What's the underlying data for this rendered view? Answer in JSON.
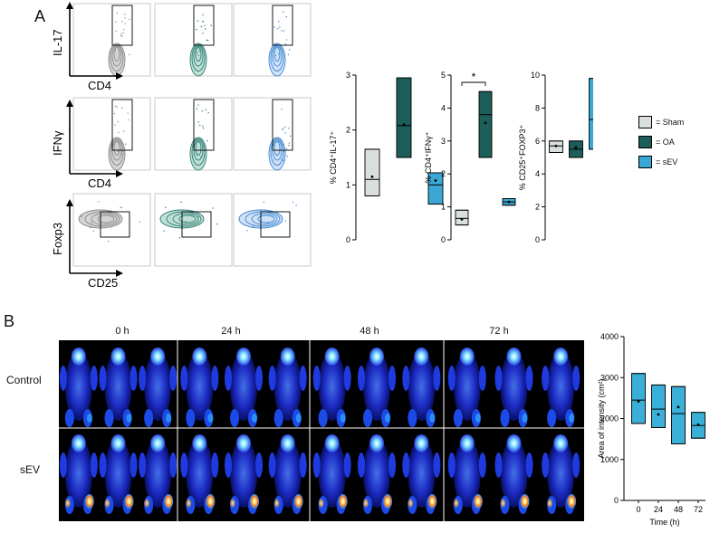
{
  "panel_labels": {
    "a": "A",
    "b": "B"
  },
  "flow": {
    "rows": [
      {
        "y_label": "IL-17",
        "x_label": "CD4"
      },
      {
        "y_label": "IFNγ",
        "x_label": "CD4"
      },
      {
        "y_label": "Foxp3",
        "x_label": "CD25"
      }
    ],
    "groups": [
      "Sham",
      "OA",
      "sEV"
    ]
  },
  "legend": {
    "items": [
      {
        "name": "= Sham",
        "color": "#d9dedf"
      },
      {
        "name": "= OA",
        "color": "#1c5e5a"
      },
      {
        "name": "= sEV",
        "color": "#3aa7d4"
      }
    ]
  },
  "imaging": {
    "timepoints": [
      "0 h",
      "24 h",
      "48 h",
      "72 h"
    ],
    "rows": [
      "Control",
      "sEV"
    ]
  },
  "chart_data": [
    {
      "type": "box",
      "ylabel": "% CD4⁺IL-17⁺",
      "ylim": [
        0,
        3
      ],
      "yticks": [
        "0",
        "1",
        "2",
        "3"
      ],
      "series": [
        {
          "name": "Sham",
          "min": 0.8,
          "q1": 0.8,
          "median": 1.1,
          "q3": 1.65,
          "max": 1.65,
          "mean": 1.15
        },
        {
          "name": "OA",
          "min": 1.5,
          "q1": 1.5,
          "median": 2.08,
          "q3": 2.95,
          "max": 2.95,
          "mean": 2.1
        },
        {
          "name": "sEV",
          "min": 0.65,
          "q1": 0.65,
          "median": 1.0,
          "q3": 1.22,
          "max": 1.22,
          "mean": 1.08
        }
      ]
    },
    {
      "type": "box",
      "ylabel": "% CD4⁺IFNγ⁺",
      "ylim": [
        0,
        5
      ],
      "yticks": [
        "0",
        "1",
        "2",
        "3",
        "4",
        "5"
      ],
      "annotation": "*",
      "series": [
        {
          "name": "Sham",
          "min": 0.45,
          "q1": 0.45,
          "median": 0.65,
          "q3": 0.9,
          "max": 0.9,
          "mean": 0.62
        },
        {
          "name": "OA",
          "min": 2.5,
          "q1": 2.5,
          "median": 3.8,
          "q3": 4.5,
          "max": 4.5,
          "mean": 3.55
        },
        {
          "name": "sEV",
          "min": 1.05,
          "q1": 1.05,
          "median": 1.15,
          "q3": 1.25,
          "max": 1.25,
          "mean": 1.15
        }
      ]
    },
    {
      "type": "box",
      "ylabel": "% CD25⁺FOXP3⁺",
      "ylim": [
        0,
        10
      ],
      "yticks": [
        "0",
        "2",
        "4",
        "6",
        "8",
        "10"
      ],
      "series": [
        {
          "name": "Sham",
          "min": 5.3,
          "q1": 5.3,
          "median": 5.7,
          "q3": 6.0,
          "max": 6.0,
          "mean": 5.7
        },
        {
          "name": "OA",
          "min": 5.0,
          "q1": 5.0,
          "median": 5.5,
          "q3": 6.0,
          "max": 6.0,
          "mean": 5.6
        },
        {
          "name": "sEV",
          "min": 5.5,
          "q1": 5.5,
          "median": 7.3,
          "q3": 9.8,
          "max": 9.8,
          "mean": 6.7
        }
      ]
    },
    {
      "type": "box",
      "xlabel": "Time (h)",
      "ylabel": "Area of intensity (cm²)",
      "ylim": [
        0,
        4000
      ],
      "yticks": [
        "0",
        "1000",
        "2000",
        "3000",
        "4000"
      ],
      "categories": [
        "0",
        "24",
        "48",
        "72"
      ],
      "series": [
        {
          "name": "0",
          "min": 1880,
          "q1": 1880,
          "median": 2450,
          "q3": 3100,
          "max": 3100,
          "mean": 2420
        },
        {
          "name": "24",
          "min": 1780,
          "q1": 1780,
          "median": 2230,
          "q3": 2820,
          "max": 2820,
          "mean": 2100
        },
        {
          "name": "48",
          "min": 1380,
          "q1": 1380,
          "median": 2120,
          "q3": 2780,
          "max": 2780,
          "mean": 2280
        },
        {
          "name": "72",
          "min": 1520,
          "q1": 1520,
          "median": 1830,
          "q3": 2150,
          "max": 2150,
          "mean": 1850
        }
      ]
    }
  ]
}
